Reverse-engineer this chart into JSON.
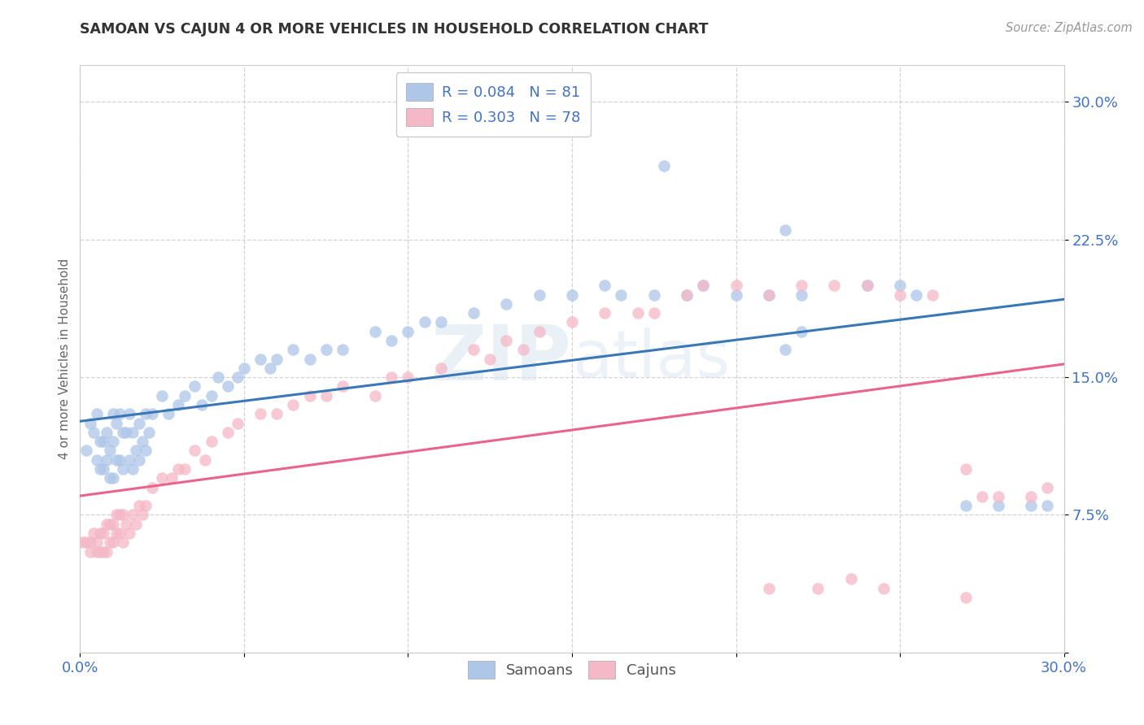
{
  "title": "SAMOAN VS CAJUN 4 OR MORE VEHICLES IN HOUSEHOLD CORRELATION CHART",
  "source": "Source: ZipAtlas.com",
  "ylabel": "4 or more Vehicles in Household",
  "ytick_vals": [
    0.0,
    0.075,
    0.15,
    0.225,
    0.3
  ],
  "ytick_labels": [
    "",
    "7.5%",
    "15.0%",
    "22.5%",
    "30.0%"
  ],
  "xtick_vals": [
    0.0,
    0.05,
    0.1,
    0.15,
    0.2,
    0.25,
    0.3
  ],
  "xtick_labels": [
    "0.0%",
    "",
    "",
    "",
    "",
    "",
    "30.0%"
  ],
  "xlim": [
    0.0,
    0.3
  ],
  "ylim": [
    0.0,
    0.32
  ],
  "legend_samoan": "R = 0.084   N = 81",
  "legend_cajun": "R = 0.303   N = 78",
  "samoan_color": "#aec6e8",
  "cajun_color": "#f4b8c8",
  "samoan_line_color": "#3a78b5",
  "cajun_line_color": "#e8648c",
  "text_color_blue": "#4472c4",
  "background_color": "#ffffff",
  "grid_color": "#c8c8c8",
  "watermark1": "ZIP",
  "watermark2": "atlas",
  "samoan_x": [
    0.002,
    0.003,
    0.004,
    0.005,
    0.005,
    0.006,
    0.006,
    0.007,
    0.007,
    0.008,
    0.008,
    0.009,
    0.009,
    0.01,
    0.01,
    0.01,
    0.011,
    0.011,
    0.012,
    0.012,
    0.013,
    0.013,
    0.014,
    0.015,
    0.015,
    0.016,
    0.016,
    0.017,
    0.018,
    0.018,
    0.019,
    0.02,
    0.02,
    0.021,
    0.022,
    0.025,
    0.027,
    0.03,
    0.032,
    0.035,
    0.037,
    0.04,
    0.042,
    0.045,
    0.048,
    0.05,
    0.055,
    0.058,
    0.06,
    0.065,
    0.07,
    0.075,
    0.08,
    0.09,
    0.095,
    0.1,
    0.105,
    0.11,
    0.12,
    0.13,
    0.14,
    0.15,
    0.16,
    0.165,
    0.175,
    0.185,
    0.19,
    0.2,
    0.21,
    0.215,
    0.22,
    0.24,
    0.25,
    0.255,
    0.27,
    0.28,
    0.29,
    0.295,
    0.178,
    0.215,
    0.22
  ],
  "samoan_y": [
    0.11,
    0.125,
    0.12,
    0.13,
    0.105,
    0.115,
    0.1,
    0.115,
    0.1,
    0.12,
    0.105,
    0.11,
    0.095,
    0.13,
    0.115,
    0.095,
    0.125,
    0.105,
    0.13,
    0.105,
    0.12,
    0.1,
    0.12,
    0.13,
    0.105,
    0.12,
    0.1,
    0.11,
    0.125,
    0.105,
    0.115,
    0.13,
    0.11,
    0.12,
    0.13,
    0.14,
    0.13,
    0.135,
    0.14,
    0.145,
    0.135,
    0.14,
    0.15,
    0.145,
    0.15,
    0.155,
    0.16,
    0.155,
    0.16,
    0.165,
    0.16,
    0.165,
    0.165,
    0.175,
    0.17,
    0.175,
    0.18,
    0.18,
    0.185,
    0.19,
    0.195,
    0.195,
    0.2,
    0.195,
    0.195,
    0.195,
    0.2,
    0.195,
    0.195,
    0.23,
    0.195,
    0.2,
    0.2,
    0.195,
    0.08,
    0.08,
    0.08,
    0.08,
    0.265,
    0.165,
    0.175
  ],
  "cajun_x": [
    0.001,
    0.002,
    0.003,
    0.003,
    0.004,
    0.005,
    0.005,
    0.006,
    0.006,
    0.007,
    0.007,
    0.008,
    0.008,
    0.009,
    0.009,
    0.01,
    0.01,
    0.011,
    0.011,
    0.012,
    0.012,
    0.013,
    0.013,
    0.014,
    0.015,
    0.016,
    0.017,
    0.018,
    0.019,
    0.02,
    0.022,
    0.025,
    0.028,
    0.03,
    0.032,
    0.035,
    0.038,
    0.04,
    0.045,
    0.048,
    0.055,
    0.06,
    0.065,
    0.07,
    0.075,
    0.08,
    0.09,
    0.095,
    0.1,
    0.11,
    0.12,
    0.125,
    0.13,
    0.135,
    0.14,
    0.15,
    0.16,
    0.17,
    0.175,
    0.185,
    0.19,
    0.2,
    0.21,
    0.22,
    0.23,
    0.24,
    0.25,
    0.26,
    0.27,
    0.275,
    0.28,
    0.29,
    0.295,
    0.21,
    0.225,
    0.235,
    0.245,
    0.27
  ],
  "cajun_y": [
    0.06,
    0.06,
    0.06,
    0.055,
    0.065,
    0.06,
    0.055,
    0.065,
    0.055,
    0.065,
    0.055,
    0.07,
    0.055,
    0.07,
    0.06,
    0.07,
    0.06,
    0.075,
    0.065,
    0.075,
    0.065,
    0.075,
    0.06,
    0.07,
    0.065,
    0.075,
    0.07,
    0.08,
    0.075,
    0.08,
    0.09,
    0.095,
    0.095,
    0.1,
    0.1,
    0.11,
    0.105,
    0.115,
    0.12,
    0.125,
    0.13,
    0.13,
    0.135,
    0.14,
    0.14,
    0.145,
    0.14,
    0.15,
    0.15,
    0.155,
    0.165,
    0.16,
    0.17,
    0.165,
    0.175,
    0.18,
    0.185,
    0.185,
    0.185,
    0.195,
    0.2,
    0.2,
    0.195,
    0.2,
    0.2,
    0.2,
    0.195,
    0.195,
    0.1,
    0.085,
    0.085,
    0.085,
    0.09,
    0.035,
    0.035,
    0.04,
    0.035,
    0.03
  ]
}
